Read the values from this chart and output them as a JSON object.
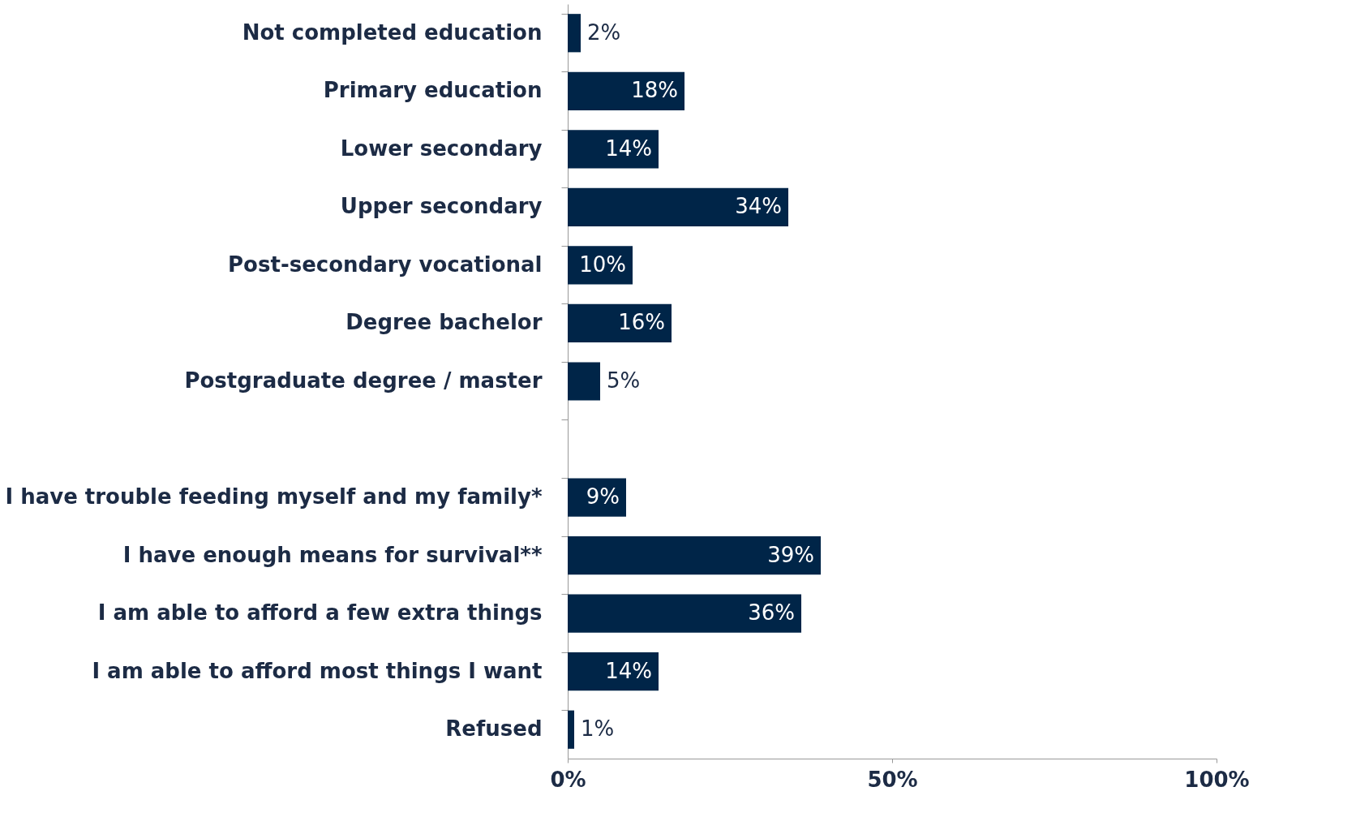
{
  "chart_data": {
    "type": "bar",
    "orientation": "horizontal",
    "categories": [
      "Not completed education",
      "Primary education",
      "Lower secondary",
      "Upper secondary",
      "Post-secondary vocational",
      "Degree bachelor",
      "Postgraduate degree / master",
      null,
      "I have trouble feeding myself and my family*",
      "I have enough means for survival**",
      "I am able to afford a few extra things",
      "I am able to afford most things I want",
      "Refused"
    ],
    "values": [
      2,
      18,
      14,
      34,
      10,
      16,
      5,
      null,
      9,
      39,
      36,
      14,
      1
    ],
    "value_labels": [
      "2%",
      "18%",
      "14%",
      "34%",
      "10%",
      "16%",
      "5%",
      null,
      "9%",
      "39%",
      "36%",
      "14%",
      "1%"
    ],
    "color": "#002548",
    "xlim": [
      0,
      100
    ],
    "xticks": [
      {
        "value": 0,
        "label": "0%"
      },
      {
        "value": 50,
        "label": "50%"
      },
      {
        "value": 100,
        "label": "100%"
      }
    ],
    "grid": false
  }
}
